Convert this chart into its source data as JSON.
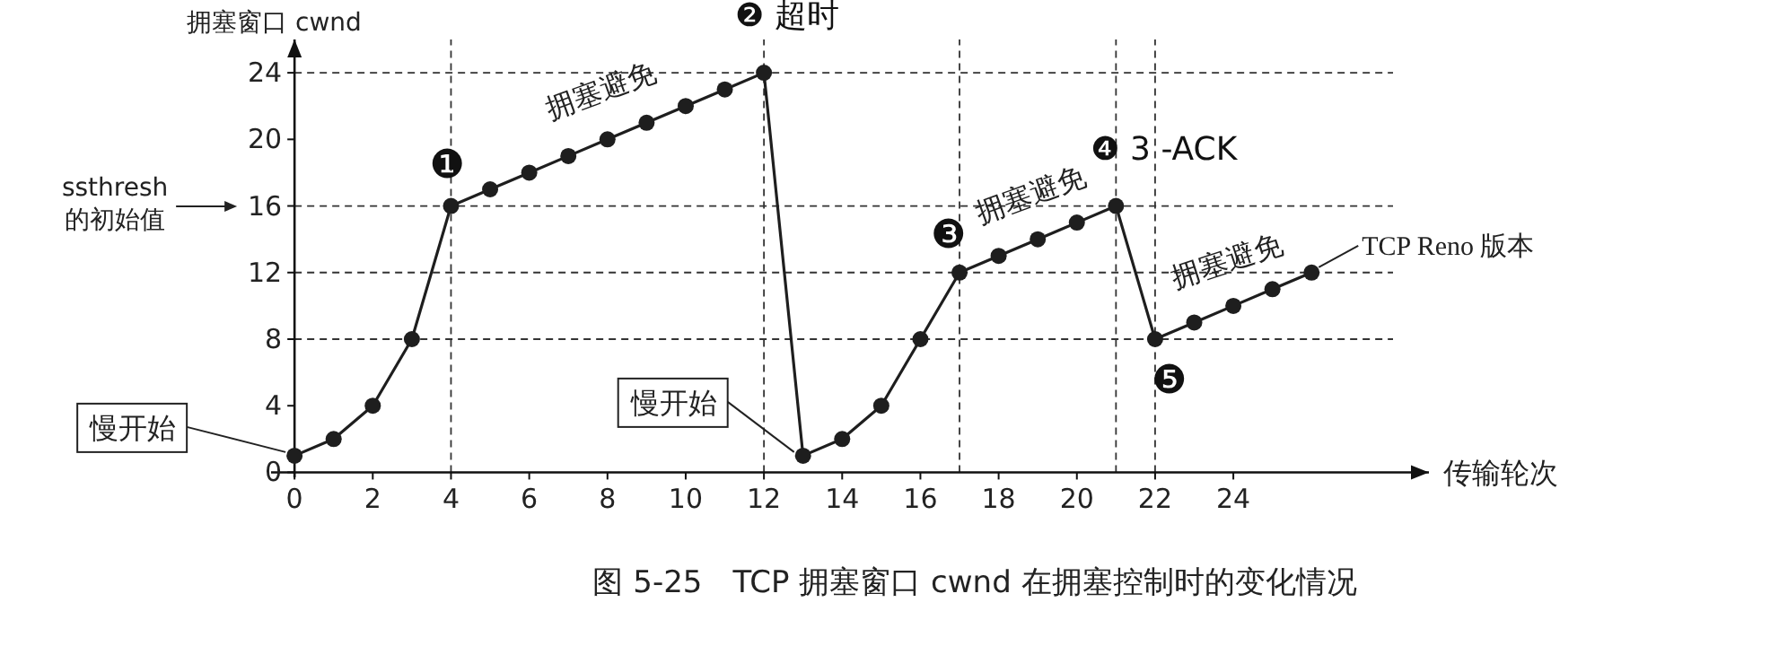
{
  "chart_data": {
    "type": "line",
    "ylabel": "拥塞窗口 cwnd",
    "xlabel": "传输轮次",
    "x": [
      0,
      1,
      2,
      3,
      4,
      5,
      6,
      7,
      8,
      9,
      10,
      11,
      12,
      13,
      14,
      15,
      16,
      17,
      18,
      19,
      20,
      21,
      22,
      23,
      24,
      25,
      26
    ],
    "series": [
      {
        "color": "#1e1e1e",
        "values": [
          1,
          2,
          4,
          8,
          16,
          17,
          18,
          19,
          20,
          21,
          22,
          23,
          24,
          1,
          2,
          4,
          8,
          12,
          13,
          14,
          15,
          16,
          8,
          9,
          10,
          11,
          12
        ]
      }
    ],
    "xlim": [
      -0.6,
      29
    ],
    "ylim": [
      -0.3,
      26
    ],
    "xticks": [
      0,
      2,
      4,
      6,
      8,
      10,
      12,
      14,
      16,
      18,
      20,
      22,
      24
    ],
    "yticks": [
      0,
      4,
      8,
      12,
      16,
      20,
      24
    ],
    "marker": "circle",
    "line_style": "solid",
    "ref_lines": [
      {
        "axis": "y",
        "value": 24,
        "line_style": "dashed"
      },
      {
        "axis": "y",
        "value": 16,
        "line_style": "dashed"
      },
      {
        "axis": "y",
        "value": 12,
        "line_style": "dashed"
      },
      {
        "axis": "y",
        "value": 8,
        "line_style": "dashed"
      },
      {
        "axis": "x",
        "value": 4,
        "line_style": "dashed"
      },
      {
        "axis": "x",
        "value": 12,
        "line_style": "dashed"
      },
      {
        "axis": "x",
        "value": 17,
        "line_style": "dashed"
      },
      {
        "axis": "x",
        "value": 21,
        "line_style": "dashed"
      },
      {
        "axis": "x",
        "value": 22,
        "line_style": "dashed"
      }
    ],
    "annotations": [
      {
        "text": "❶",
        "x": 4,
        "y": 16
      },
      {
        "text": "❷ 超时",
        "x": 12,
        "y": 24
      },
      {
        "text": "❸",
        "x": 17,
        "y": 12
      },
      {
        "text": "❹ 3 -ACK",
        "x": 21,
        "y": 16
      },
      {
        "text": "❺",
        "x": 22,
        "y": 8
      },
      {
        "text": "TCP Reno 版本",
        "x": 26,
        "y": 12
      },
      {
        "text": "慢开始",
        "x": 0,
        "y": 1
      },
      {
        "text": "慢开始",
        "x": 13,
        "y": 1
      },
      "ssthresh 的初始值",
      {
        "text": "拥塞避免",
        "x": 8,
        "y": 20
      },
      {
        "text": "拥塞避免",
        "x": 19,
        "y": 14
      },
      {
        "text": "拥塞避免",
        "x": 24,
        "y": 10
      },
      "图 5-25　TCP 拥塞窗口 cwnd 在拥塞控制时的变化情况"
    ]
  }
}
